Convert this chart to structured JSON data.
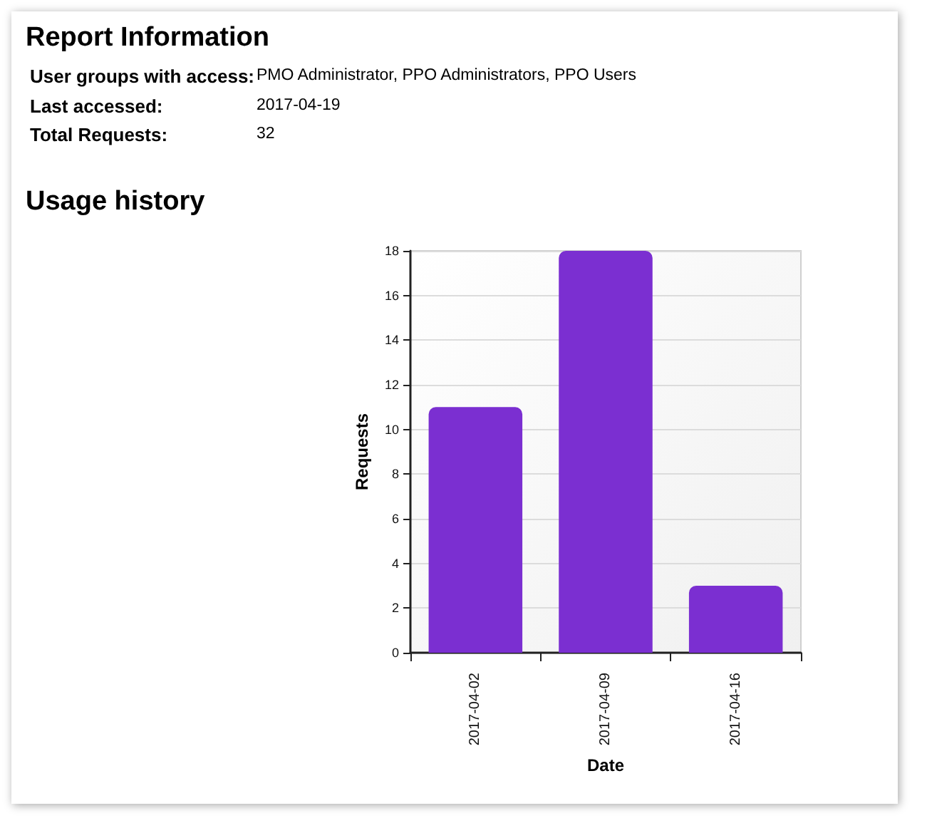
{
  "chart_data": {
    "type": "bar",
    "title": "Usage history",
    "annotations": [
      "Report Information",
      "User groups with access:",
      "PMO Administrator, PPO Administrators, PPO Users",
      "Last accessed:",
      "2017-04-19",
      "Total Requests:",
      "32"
    ],
    "xlabel": "Date",
    "ylabel": "Requests",
    "categories": [
      "2017-04-02",
      "2017-04-09",
      "2017-04-16"
    ],
    "values": [
      11,
      18,
      3
    ],
    "color": "#7b2fd1",
    "ylim": [
      0,
      18
    ],
    "yticks": [
      0,
      2,
      4,
      6,
      8,
      10,
      12,
      14,
      16,
      18
    ],
    "grid": "y"
  }
}
